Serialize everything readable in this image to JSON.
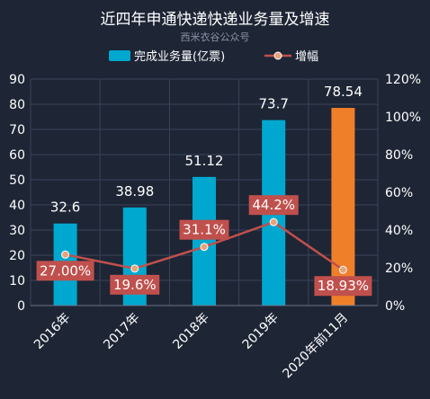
{
  "watermark": "西米衣谷公众号",
  "colors": {
    "background": "#1e2535",
    "grid": "#39435a",
    "text": "#ffffff",
    "bar": "#00a8cf",
    "bar_highlight": "#f07f2a",
    "line": "#c0504d",
    "label_box": "#c0504d"
  },
  "chart_data": {
    "type": "bar",
    "title": "近四年申通快递快递业务量及增速",
    "categories": [
      "2016年",
      "2017年",
      "2018年",
      "2019年",
      "2020年前11月"
    ],
    "series": [
      {
        "name": "完成业务量(亿票)",
        "type": "bar",
        "axis": "left",
        "values": [
          32.6,
          38.98,
          51.12,
          73.7,
          78.54
        ],
        "labels": [
          "32.6",
          "38.98",
          "51.12",
          "73.7",
          "78.54"
        ],
        "highlight_index": 4
      },
      {
        "name": "增幅",
        "type": "line",
        "axis": "right",
        "values": [
          27.0,
          19.6,
          31.1,
          44.2,
          18.93
        ],
        "labels": [
          "27.00%",
          "19.6%",
          "31.1%",
          "44.2%",
          "18.93%"
        ]
      }
    ],
    "y_left": {
      "min": 0,
      "max": 90,
      "ticks": [
        "0",
        "10",
        "20",
        "30",
        "40",
        "50",
        "60",
        "70",
        "80",
        "90"
      ]
    },
    "y_right": {
      "min": 0,
      "max": 120,
      "ticks": [
        "0%",
        "20%",
        "40%",
        "60%",
        "80%",
        "100%",
        "120%"
      ]
    },
    "legend_position": "top-center",
    "grid": true
  }
}
